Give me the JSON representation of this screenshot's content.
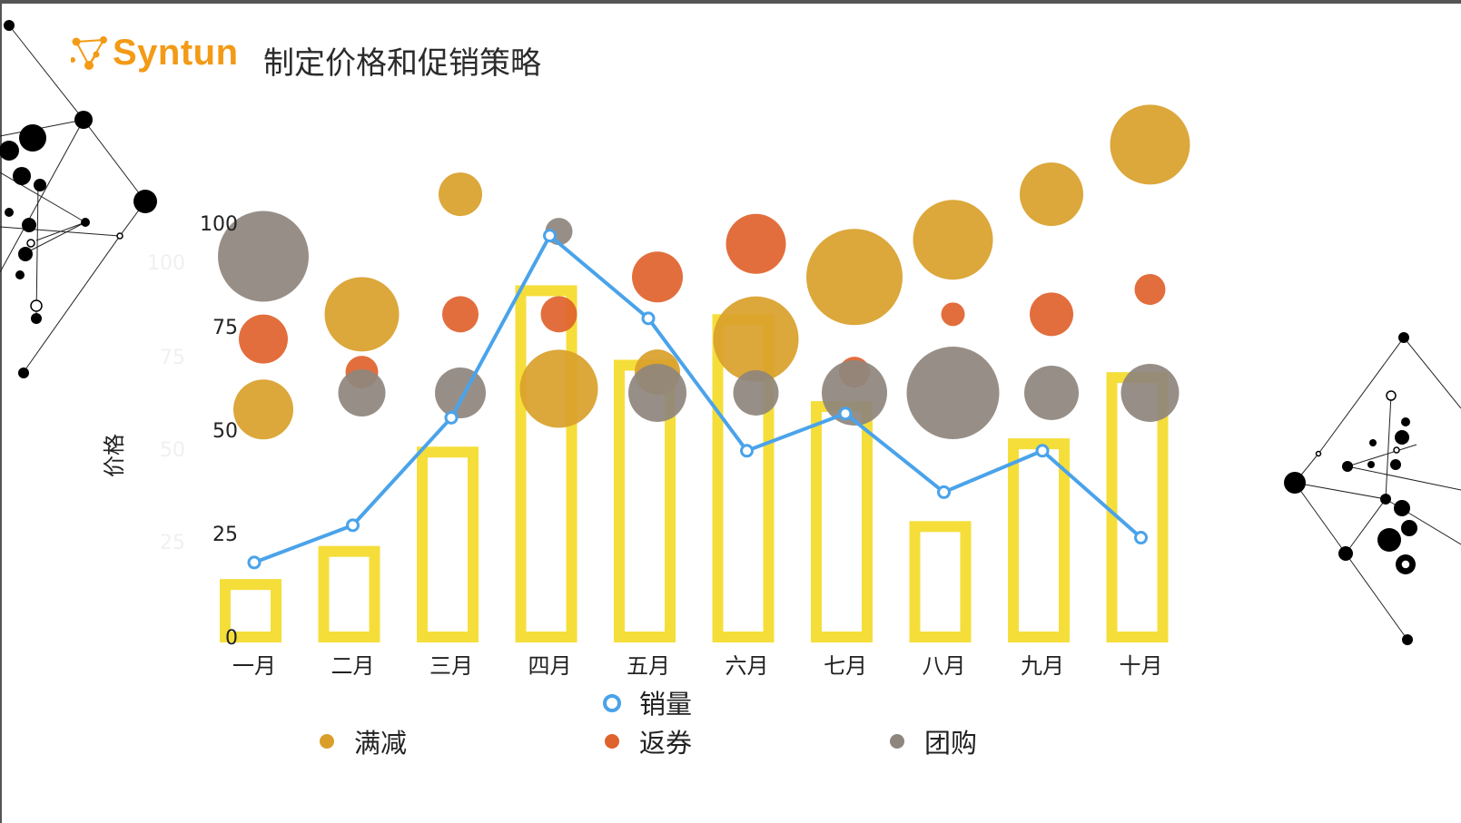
{
  "brand": {
    "name": "Syntun",
    "color": "#f39a16"
  },
  "page": {
    "title": "制定价格和促销策略"
  },
  "chart_data": {
    "type": "bar+line+bubble",
    "categories": [
      "一月",
      "二月",
      "三月",
      "四月",
      "五月",
      "六月",
      "七月",
      "八月",
      "九月",
      "十月"
    ],
    "ylabel": "价格",
    "ylim": [
      0,
      100
    ],
    "yticks": [
      0,
      25,
      50,
      75,
      100
    ],
    "bars": {
      "name": "",
      "color": "#f5de3a",
      "values": [
        14,
        22,
        46,
        85,
        67,
        78,
        57,
        28,
        48,
        64
      ]
    },
    "line": {
      "name": "销量",
      "color": "#4aa3ea",
      "values": [
        18,
        27,
        53,
        97,
        77,
        45,
        54,
        35,
        45,
        24
      ]
    },
    "bubbles": [
      {
        "name": "满减",
        "color": "#d99f2a",
        "points": [
          {
            "y": 55,
            "r": 33
          },
          {
            "y": 78,
            "r": 41
          },
          {
            "y": 107,
            "r": 24
          },
          {
            "y": 60,
            "r": 43
          },
          {
            "y": 64,
            "r": 25
          },
          {
            "y": 72,
            "r": 47
          },
          {
            "y": 87,
            "r": 53
          },
          {
            "y": 96,
            "r": 44
          },
          {
            "y": 107,
            "r": 35
          },
          {
            "y": 119,
            "r": 44
          }
        ]
      },
      {
        "name": "返券",
        "color": "#e0622c",
        "points": [
          {
            "y": 72,
            "r": 27
          },
          {
            "y": 64,
            "r": 18
          },
          {
            "y": 78,
            "r": 20
          },
          {
            "y": 78,
            "r": 20
          },
          {
            "y": 87,
            "r": 28
          },
          {
            "y": 95,
            "r": 33
          },
          {
            "y": 64,
            "r": 17
          },
          {
            "y": 78,
            "r": 13
          },
          {
            "y": 78,
            "r": 24
          },
          {
            "y": 84,
            "r": 17
          }
        ]
      },
      {
        "name": "团购",
        "color": "#8e867d",
        "points": [
          {
            "y": 92,
            "r": 50
          },
          {
            "y": 59,
            "r": 26
          },
          {
            "y": 59,
            "r": 28
          },
          {
            "y": 98,
            "r": 15
          },
          {
            "y": 59,
            "r": 32
          },
          {
            "y": 59,
            "r": 25
          },
          {
            "y": 59,
            "r": 36
          },
          {
            "y": 59,
            "r": 51
          },
          {
            "y": 59,
            "r": 30
          },
          {
            "y": 59,
            "r": 32
          }
        ]
      }
    ],
    "ghost_ticks": [
      "100",
      "75",
      "50",
      "25"
    ]
  }
}
